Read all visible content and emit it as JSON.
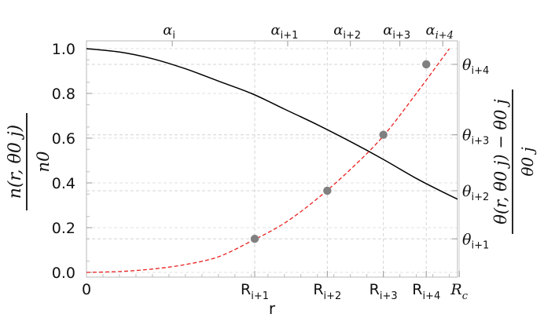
{
  "chart_data": {
    "type": "line",
    "title": "",
    "xlabel": "r",
    "ylabel_left": {
      "numerator": "n(r, θ0 j)",
      "denominator": "n0"
    },
    "ylabel_right": {
      "numerator": "θ(r, θ0 j) − θ0 j",
      "denominator": "θ0 j"
    },
    "xlim": [
      0,
      1.12
    ],
    "ylim": [
      0,
      1.0
    ],
    "yticks": [
      {
        "value": 0.0,
        "label": "0.0"
      },
      {
        "value": 0.2,
        "label": "0.2"
      },
      {
        "value": 0.4,
        "label": "0.4"
      },
      {
        "value": 0.6,
        "label": "0.6"
      },
      {
        "value": 0.8,
        "label": "0.8"
      },
      {
        "value": 1.0,
        "label": "1.0"
      }
    ],
    "x_zero_label": "0",
    "x_marks": [
      {
        "base": "R",
        "sub": "i+1",
        "x": 0.51
      },
      {
        "base": "R",
        "sub": "i+2",
        "x": 0.73
      },
      {
        "base": "R",
        "sub": "i+3",
        "x": 0.9
      },
      {
        "base": "R",
        "sub": "i+4",
        "x": 1.03
      },
      {
        "base": "R",
        "sub": "c",
        "x": 1.13,
        "italic_sub": true
      }
    ],
    "top_marks": [
      {
        "base": "α",
        "sub": "i",
        "x": 0.26
      },
      {
        "base": "α",
        "sub": "i+1",
        "x": 0.61
      },
      {
        "base": "α",
        "sub": "i+2",
        "x": 0.8
      },
      {
        "base": "α",
        "sub": "i+3",
        "x": 0.95
      },
      {
        "base": "α",
        "sub": "i+4",
        "x": 1.08
      }
    ],
    "right_marks": [
      {
        "base": "θ",
        "sub": "i+1",
        "y": 0.15
      },
      {
        "base": "θ",
        "sub": "i+2",
        "y": 0.365
      },
      {
        "base": "θ",
        "sub": "i+3",
        "y": 0.615
      },
      {
        "base": "θ",
        "sub": "i+4",
        "y": 0.93
      }
    ],
    "series": [
      {
        "style": "solid",
        "color": "#000000",
        "x": [
          0,
          0.1,
          0.2,
          0.3,
          0.4,
          0.5,
          0.6,
          0.7,
          0.8,
          0.9,
          1.0,
          1.1,
          1.2
        ],
        "values": [
          1.0,
          0.985,
          0.955,
          0.91,
          0.855,
          0.8,
          0.73,
          0.66,
          0.585,
          0.505,
          0.42,
          0.345,
          0.275
        ]
      },
      {
        "style": "dashed",
        "color": "#e8201e",
        "x": [
          0,
          0.1,
          0.2,
          0.3,
          0.4,
          0.5,
          0.6,
          0.7,
          0.8,
          0.9,
          1.0,
          1.1
        ],
        "values": [
          0.0,
          0.004,
          0.015,
          0.035,
          0.07,
          0.14,
          0.22,
          0.33,
          0.46,
          0.61,
          0.8,
          1.0
        ],
        "markers": [
          {
            "x": 0.51,
            "y": 0.15
          },
          {
            "x": 0.73,
            "y": 0.365
          },
          {
            "x": 0.9,
            "y": 0.615
          },
          {
            "x": 1.03,
            "y": 0.93
          }
        ],
        "marker_color": "#808080"
      }
    ],
    "grid": "dashed gray guide lines at marked positions"
  }
}
